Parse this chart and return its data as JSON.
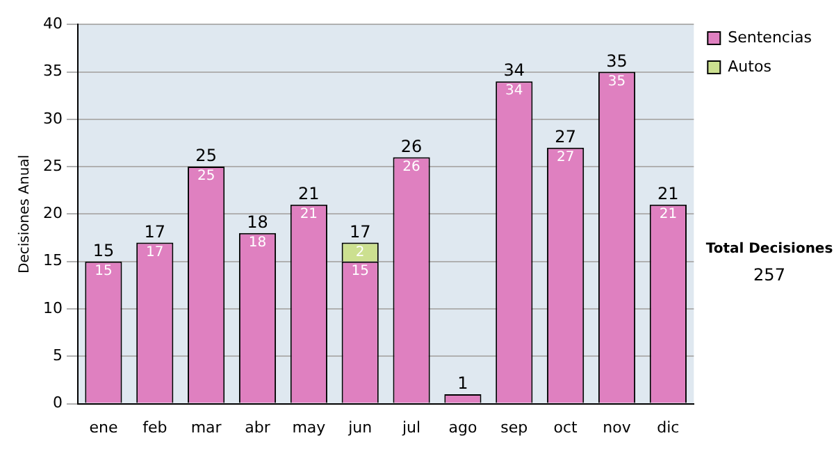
{
  "chart_data": {
    "type": "bar",
    "ylabel": "Decisiones Anual",
    "categories": [
      "ene",
      "feb",
      "mar",
      "abr",
      "may",
      "jun",
      "jul",
      "ago",
      "sep",
      "oct",
      "nov",
      "dic"
    ],
    "series": [
      {
        "name": "Sentencias",
        "color": "#df80c0",
        "values": [
          15,
          17,
          25,
          18,
          21,
          15,
          26,
          1,
          34,
          27,
          35,
          21
        ],
        "value_labels": [
          "15",
          "17",
          "25",
          "18",
          "21",
          "15",
          "26",
          null,
          "34",
          "27",
          "35",
          "21"
        ]
      },
      {
        "name": "Autos",
        "color": "#cce090",
        "values": [
          null,
          null,
          null,
          null,
          null,
          2,
          null,
          null,
          null,
          null,
          null,
          null
        ],
        "value_labels": [
          null,
          null,
          null,
          null,
          null,
          "2",
          null,
          null,
          null,
          null,
          null,
          null
        ]
      }
    ],
    "stacked": true,
    "totals": [
      "15",
      "17",
      "25",
      "18",
      "21",
      "17",
      "26",
      "1",
      "34",
      "27",
      "35",
      "21"
    ],
    "ylim": [
      0,
      40
    ],
    "yticks": [
      0,
      5,
      10,
      15,
      20,
      25,
      30,
      35,
      40
    ],
    "grid": "y",
    "legend": "right",
    "annotations": [
      "Total Decisiones",
      "257"
    ]
  }
}
